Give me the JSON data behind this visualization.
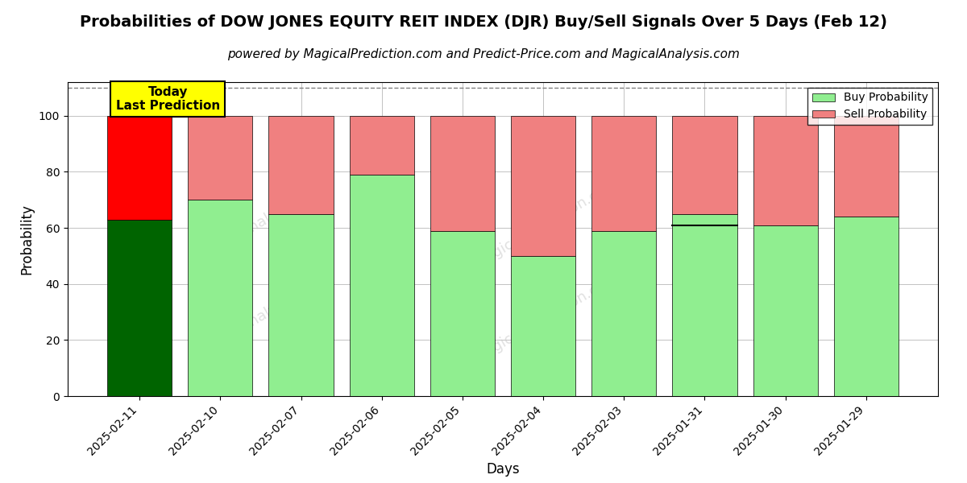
{
  "title": "Probabilities of DOW JONES EQUITY REIT INDEX (DJR) Buy/Sell Signals Over 5 Days (Feb 12)",
  "subtitle": "powered by MagicalPrediction.com and Predict-Price.com and MagicalAnalysis.com",
  "xlabel": "Days",
  "ylabel": "Probability",
  "dates": [
    "2025-02-11",
    "2025-02-10",
    "2025-02-07",
    "2025-02-06",
    "2025-02-05",
    "2025-02-04",
    "2025-02-03",
    "2025-01-31",
    "2025-01-30",
    "2025-01-29"
  ],
  "buy_values": [
    63,
    70,
    65,
    79,
    59,
    50,
    59,
    65,
    61,
    64
  ],
  "sell_values": [
    37,
    30,
    35,
    21,
    41,
    50,
    41,
    35,
    39,
    36
  ],
  "buy_color_today": "#006400",
  "sell_color_today": "#FF0000",
  "buy_color_normal": "#90EE90",
  "sell_color_normal": "#F08080",
  "today_annotation": "Today\nLast Prediction",
  "today_annotation_bg": "#FFFF00",
  "ylim": [
    0,
    112
  ],
  "dashed_line_y": 110,
  "yticks": [
    0,
    20,
    40,
    60,
    80,
    100
  ],
  "background_color": "#ffffff",
  "grid_color": "#aaaaaa",
  "title_fontsize": 14,
  "subtitle_fontsize": 11,
  "label_fontsize": 12,
  "tick_fontsize": 10,
  "legend_buy_label": "Buy Probability",
  "legend_sell_label": "Sell Probability",
  "watermark_color": "#cccccc",
  "black_line_bar_index": 7,
  "black_line_y": 61
}
